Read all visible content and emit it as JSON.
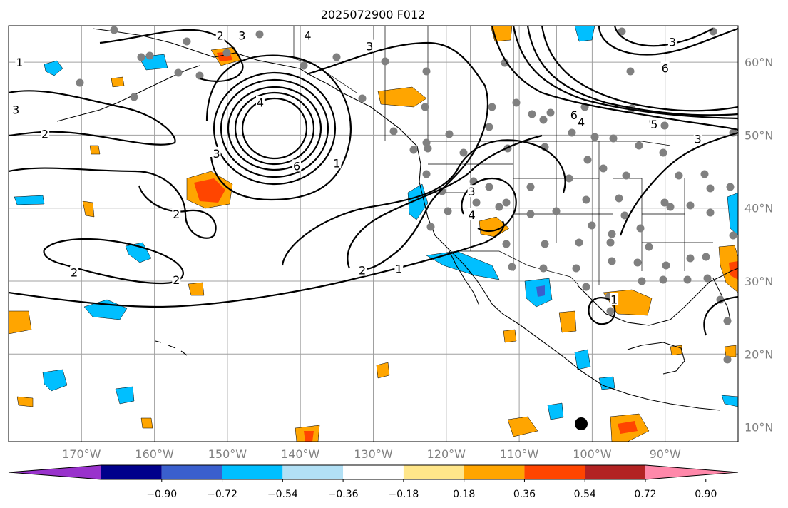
{
  "figure": {
    "title": "2025072900 F012"
  },
  "map": {
    "longitude_labels": [
      "170°W",
      "160°W",
      "150°W",
      "140°W",
      "130°W",
      "120°W",
      "110°W",
      "100°W",
      "90°W"
    ],
    "latitude_labels": [
      "60°N",
      "50°N",
      "40°N",
      "30°N",
      "20°N",
      "10°N"
    ],
    "contour_labels": [
      {
        "text": "1",
        "lon": -178.5,
        "lat": 60
      },
      {
        "text": "2",
        "lon": -151,
        "lat": 63.7
      },
      {
        "text": "3",
        "lon": -148,
        "lat": 63.7
      },
      {
        "text": "4",
        "lon": -139,
        "lat": 63.7
      },
      {
        "text": "3",
        "lon": -130.5,
        "lat": 62.2
      },
      {
        "text": "3",
        "lon": -179,
        "lat": 53.5
      },
      {
        "text": "2",
        "lon": -175,
        "lat": 50.2
      },
      {
        "text": "4",
        "lon": -145.5,
        "lat": 54.5
      },
      {
        "text": "3",
        "lon": -151.5,
        "lat": 47.5
      },
      {
        "text": "6",
        "lon": -140.5,
        "lat": 45.8
      },
      {
        "text": "1",
        "lon": -135,
        "lat": 46.2
      },
      {
        "text": "2",
        "lon": -157,
        "lat": 39.2
      },
      {
        "text": "2",
        "lon": -171,
        "lat": 31.2
      },
      {
        "text": "2",
        "lon": -157,
        "lat": 30.2
      },
      {
        "text": "2",
        "lon": -131.5,
        "lat": 31.5
      },
      {
        "text": "1",
        "lon": -126.5,
        "lat": 31.7
      },
      {
        "text": "3",
        "lon": -116.5,
        "lat": 42.3
      },
      {
        "text": "4",
        "lon": -116.5,
        "lat": 39.1
      },
      {
        "text": "6",
        "lon": -90,
        "lat": 59.2
      },
      {
        "text": "3",
        "lon": -89,
        "lat": 62.8
      },
      {
        "text": "6",
        "lon": -102.5,
        "lat": 52.8
      },
      {
        "text": "4",
        "lon": -101.5,
        "lat": 51.8
      },
      {
        "text": "5",
        "lon": -91.5,
        "lat": 51.5
      },
      {
        "text": "3",
        "lon": -85.5,
        "lat": 49.5
      },
      {
        "text": "1",
        "lon": -97,
        "lat": 27.5
      }
    ]
  },
  "colorbar": {
    "tick_labels": [
      "−0.90",
      "−0.72",
      "−0.54",
      "−0.36",
      "−0.18",
      "0.18",
      "0.36",
      "0.54",
      "0.72",
      "0.90"
    ],
    "levels": [
      -0.9,
      -0.72,
      -0.54,
      -0.36,
      -0.18,
      0.18,
      0.36,
      0.54,
      0.72,
      0.9
    ],
    "colors": [
      "#9932cc",
      "#00008b",
      "#3a5fcd",
      "#00bfff",
      "#b2e0f5",
      "#ffffff",
      "#ffe68a",
      "#ffa500",
      "#ff4500",
      "#b22222",
      "#ff88aa"
    ]
  }
}
